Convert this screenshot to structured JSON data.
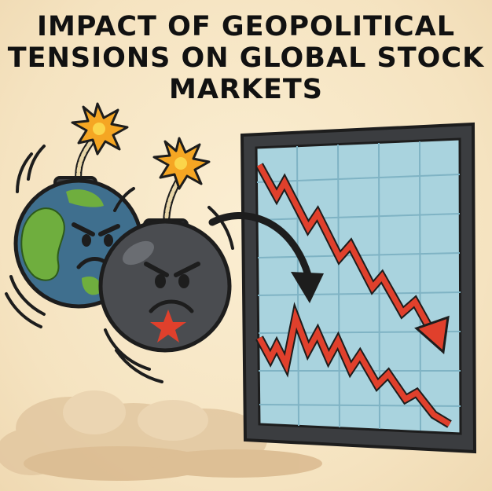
{
  "title": {
    "line1": "IMPACT OF GEOPOLITICAL",
    "line2": "TENSIONS ON GLOBAL STOCK",
    "line3": "MARKETS"
  },
  "icons": [
    "globe-bomb-icon",
    "star-bomb-icon",
    "fire-spark-icon",
    "curved-arrow-icon",
    "falling-chart-icon",
    "dust-cloud-icon"
  ],
  "colors": {
    "background": "#f7e8c8",
    "bomb": "#4a4c50",
    "globe_ocean": "#3f6f8e",
    "globe_land": "#6fae3e",
    "chart_bg": "#a9d3de",
    "trend_red": "#e0402c",
    "spark_orange": "#f5a623",
    "star_red": "#e0402c"
  }
}
